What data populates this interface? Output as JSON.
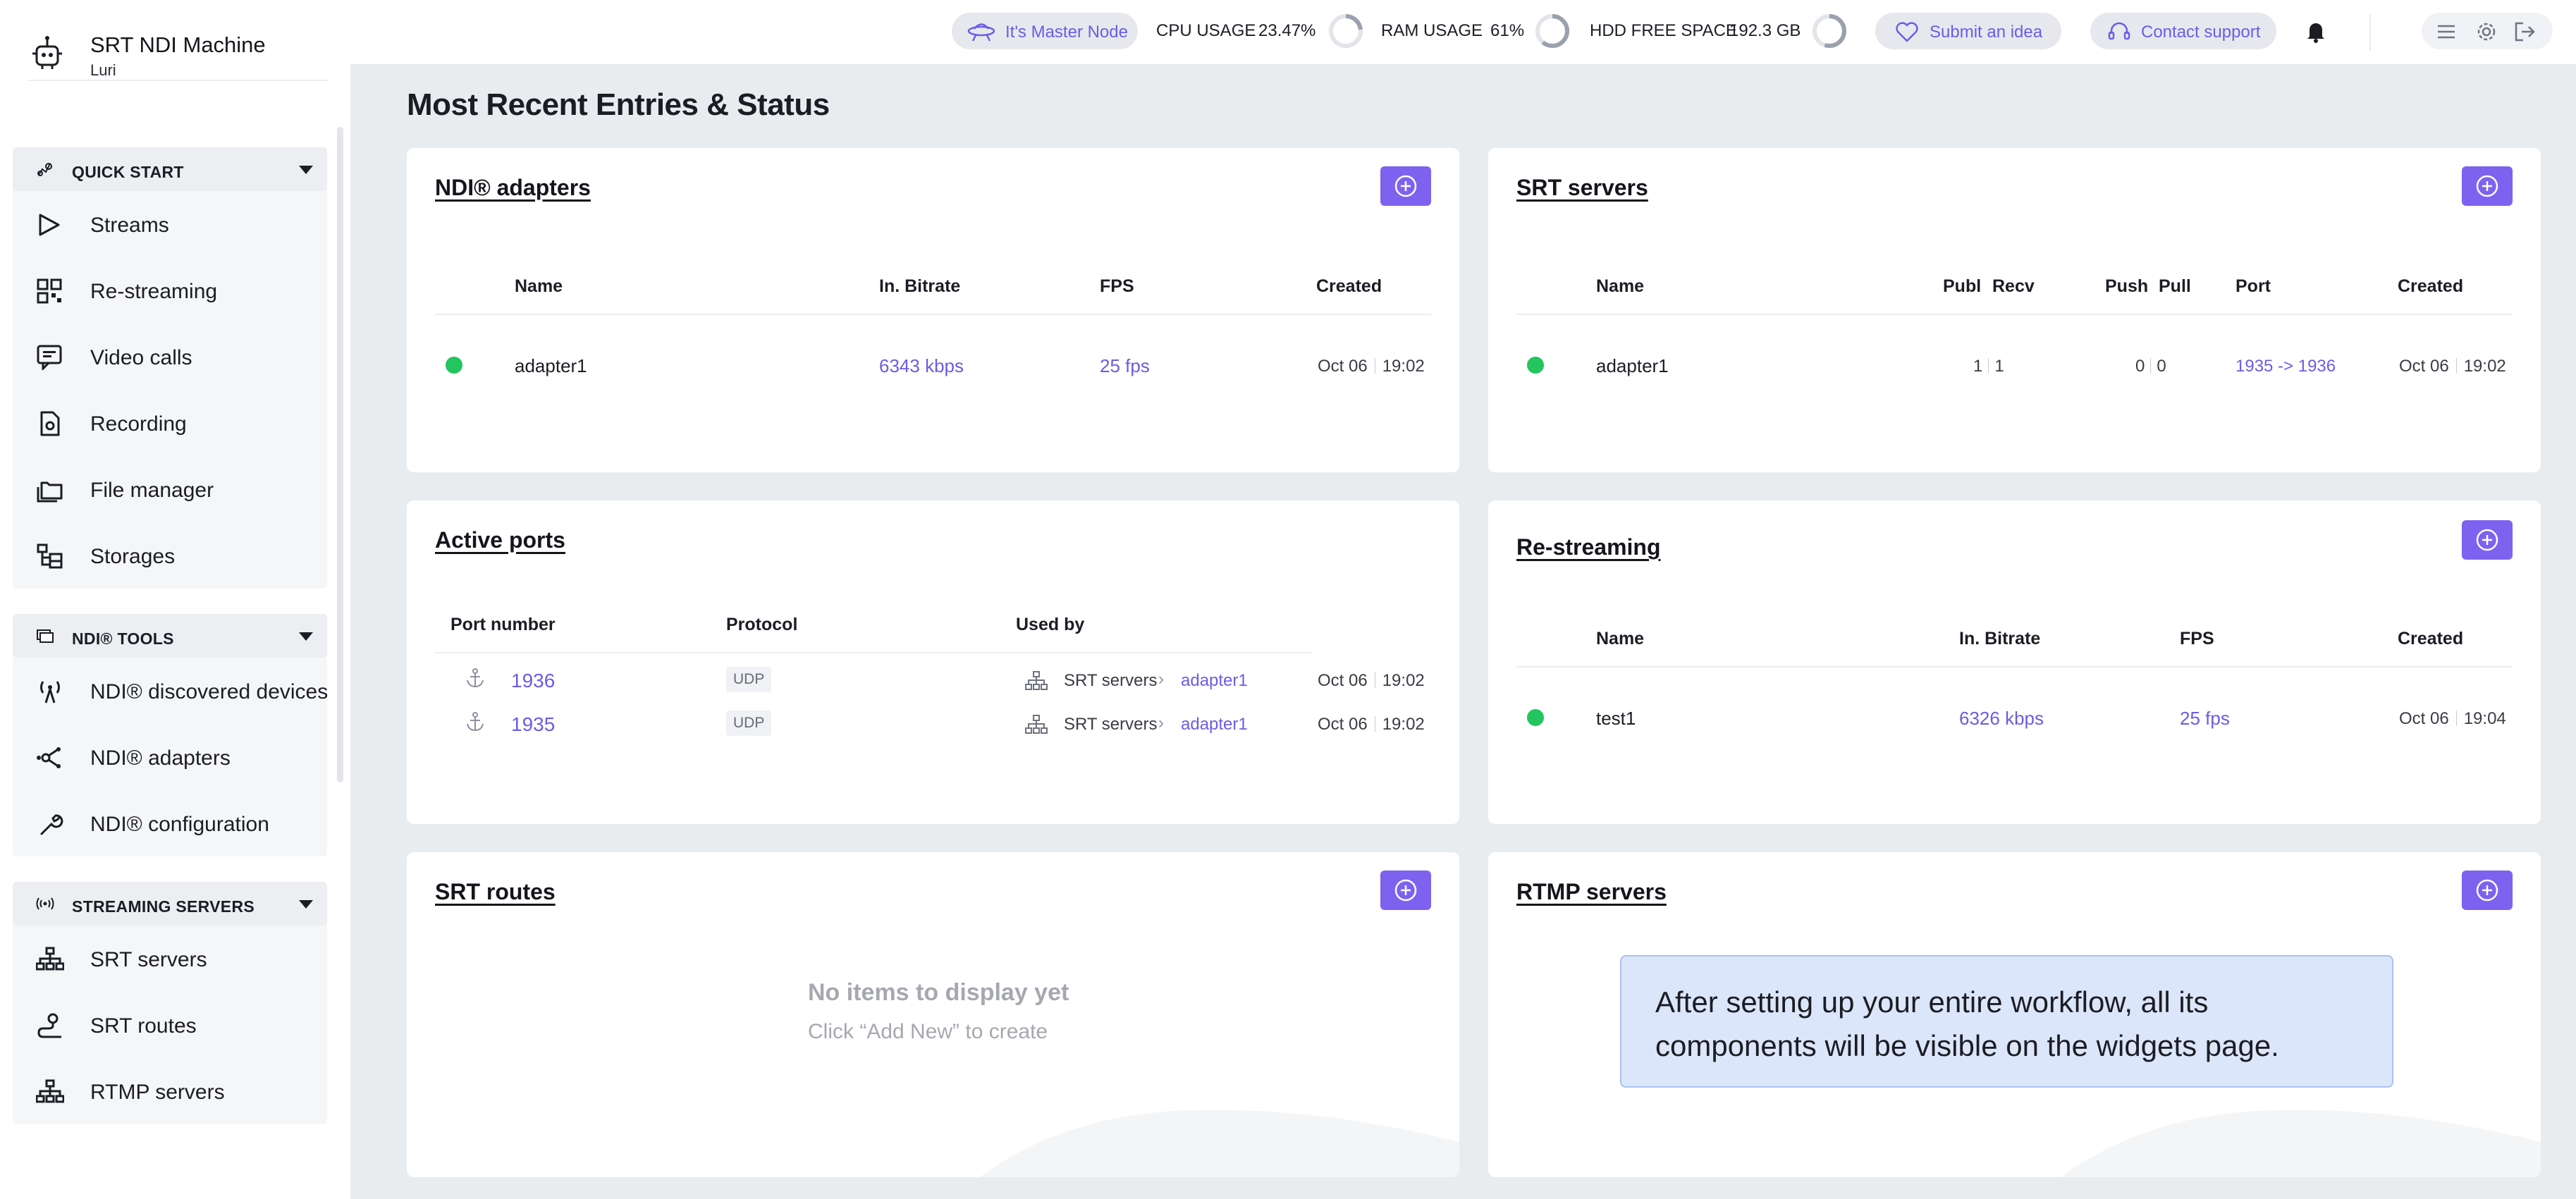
{
  "app": {
    "title": "SRT NDI Machine",
    "subtitle": "Luri"
  },
  "sidebar": {
    "sections": [
      {
        "title": "QUICK START",
        "items": [
          {
            "label": "Streams",
            "icon": "play-icon"
          },
          {
            "label": "Re-streaming",
            "icon": "qr-icon"
          },
          {
            "label": "Video calls",
            "icon": "chat-icon"
          },
          {
            "label": "Recording",
            "icon": "document-icon"
          },
          {
            "label": "File manager",
            "icon": "folders-icon"
          },
          {
            "label": "Storages",
            "icon": "storage-tree-icon"
          }
        ]
      },
      {
        "title": "NDI® TOOLS",
        "items": [
          {
            "label": "NDI® discovered devices",
            "icon": "antenna-icon"
          },
          {
            "label": "NDI® adapters",
            "icon": "nodes-icon"
          },
          {
            "label": "NDI® configuration",
            "icon": "wrench-icon"
          }
        ]
      },
      {
        "title": "STREAMING SERVERS",
        "items": [
          {
            "label": "SRT servers",
            "icon": "hierarchy-icon"
          },
          {
            "label": "SRT routes",
            "icon": "route-icon"
          },
          {
            "label": "RTMP servers",
            "icon": "hierarchy-icon"
          }
        ]
      }
    ]
  },
  "topbar": {
    "master_node": "It's Master Node",
    "cpu_label": "CPU USAGE",
    "cpu_value": "23.47%",
    "cpu_fraction": 0.2347,
    "ram_label": "RAM USAGE",
    "ram_value": "61%",
    "ram_fraction": 0.61,
    "hdd_label": "HDD FREE SPACE",
    "hdd_value": "192.3 GB",
    "hdd_fraction": 0.55,
    "idea_label": "Submit an idea",
    "support_label": "Contact support"
  },
  "main": {
    "title": "Most Recent Entries & Status",
    "ndi_adapters": {
      "title": "NDI® adapters",
      "columns": [
        "Name",
        "In. Bitrate",
        "FPS",
        "Created"
      ],
      "rows": [
        {
          "name": "adapter1",
          "bitrate": "6343 kbps",
          "fps": "25 fps",
          "date": "Oct 06",
          "time": "19:02"
        }
      ]
    },
    "srt_servers": {
      "title": "SRT servers",
      "columns": [
        "Name",
        "Publ",
        "Recv",
        "Push",
        "Pull",
        "Port",
        "Created"
      ],
      "rows": [
        {
          "name": "adapter1",
          "publ": "1",
          "recv": "1",
          "push": "0",
          "pull": "0",
          "port": "1935 -> 1936",
          "date": "Oct 06",
          "time": "19:02"
        }
      ]
    },
    "active_ports": {
      "title": "Active ports",
      "columns": [
        "Port number",
        "Protocol",
        "Used by"
      ],
      "rows": [
        {
          "port": "1936",
          "protocol": "UDP",
          "used_by": "SRT servers",
          "target": "adapter1",
          "date": "Oct 06",
          "time": "19:02"
        },
        {
          "port": "1935",
          "protocol": "UDP",
          "used_by": "SRT servers",
          "target": "adapter1",
          "date": "Oct 06",
          "time": "19:02"
        }
      ]
    },
    "restreaming": {
      "title": "Re-streaming",
      "columns": [
        "Name",
        "In. Bitrate",
        "FPS",
        "Created"
      ],
      "rows": [
        {
          "name": "test1",
          "bitrate": "6326 kbps",
          "fps": "25 fps",
          "date": "Oct 06",
          "time": "19:04"
        }
      ]
    },
    "srt_routes": {
      "title": "SRT routes",
      "empty_title": "No items to display yet",
      "empty_sub": "Click “Add New” to create"
    },
    "rtmp_servers": {
      "title": "RTMP servers",
      "info": "After setting up your entire workflow, all its components will be visible on the widgets page."
    }
  },
  "colors": {
    "accent": "#7d62f0",
    "link": "#6b5ce7",
    "status_ok": "#22c55e",
    "page_bg": "#e9ecef"
  }
}
